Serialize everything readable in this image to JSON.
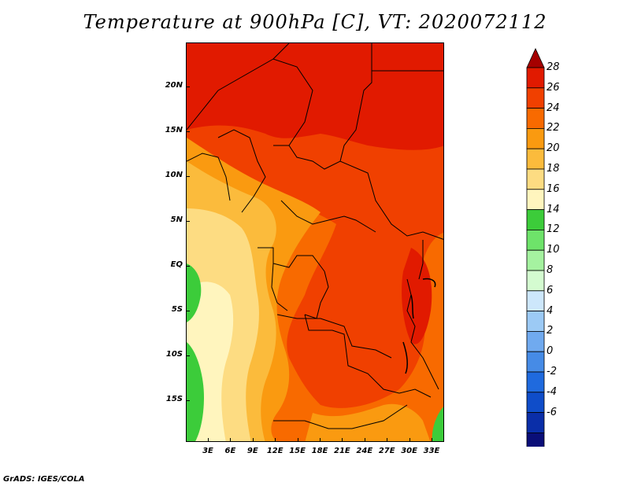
{
  "title": "Temperature at 900hPa [C], VT: 2020072112",
  "credit": "GrADS: IGES/COLA",
  "lat_labels": [
    "20N",
    "15N",
    "10N",
    "5N",
    "EQ",
    "5S",
    "10S",
    "15S"
  ],
  "lon_labels": [
    "3E",
    "6E",
    "9E",
    "12E",
    "15E",
    "18E",
    "21E",
    "24E",
    "27E",
    "30E",
    "33E"
  ],
  "colorbar": {
    "labels": [
      "28",
      "26",
      "24",
      "22",
      "20",
      "18",
      "16",
      "14",
      "12",
      "10",
      "8",
      "6",
      "4",
      "2",
      "0",
      "-2",
      "-4",
      "-6"
    ],
    "colors": [
      "#a50000",
      "#e11a00",
      "#f04000",
      "#f86a00",
      "#fa9a10",
      "#fbbb3c",
      "#fddc82",
      "#fff5be",
      "#3ccc3a",
      "#6ee36a",
      "#a5f2a0",
      "#d4fbd0",
      "#cde7fb",
      "#9ccaf5",
      "#70aaef",
      "#468be6",
      "#1f6ade",
      "#0f4dc9",
      "#0a2ea8",
      "#0a0e78",
      "#d8d8f5"
    ]
  },
  "map_colors": {
    "c27": "#e11a00",
    "c26": "#f04000",
    "c24": "#f86a00",
    "c22": "#fa9a10",
    "c20": "#fbbb3c",
    "c18": "#fddc82",
    "c16": "#fff5be",
    "c14": "#3ccc3a",
    "border": "#000000"
  }
}
